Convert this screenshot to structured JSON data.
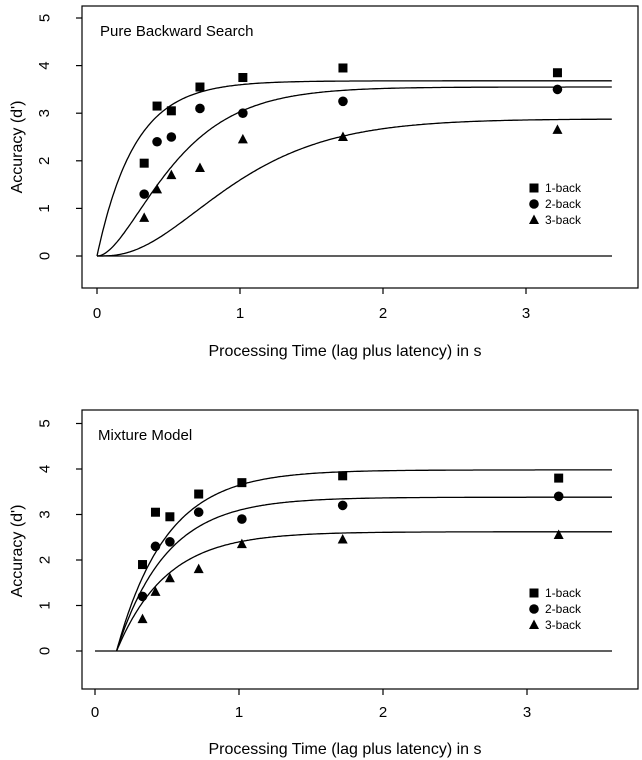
{
  "chart_data": [
    {
      "type": "scatter",
      "title": "Pure Backward Search",
      "xlabel": "Processing Time (lag plus latency) in s",
      "ylabel": "Accuracy (d')",
      "xlim": [
        -0.1,
        3.7
      ],
      "ylim": [
        -0.7,
        5.3
      ],
      "xticks": [
        "0",
        "1",
        "2",
        "3"
      ],
      "yticks": [
        "0",
        "1",
        "2",
        "3",
        "4",
        "5"
      ],
      "legend": "lower-right",
      "series": [
        {
          "name": "1-back",
          "marker": "square",
          "x": [
            0.33,
            0.42,
            0.52,
            0.72,
            1.02,
            1.72,
            3.22
          ],
          "y": [
            1.95,
            3.15,
            3.05,
            3.55,
            3.75,
            3.95,
            3.85
          ]
        },
        {
          "name": "2-back",
          "marker": "circle",
          "x": [
            0.33,
            0.42,
            0.52,
            0.72,
            1.02,
            1.72,
            3.22
          ],
          "y": [
            1.3,
            2.4,
            2.5,
            3.1,
            3.0,
            3.25,
            3.5
          ]
        },
        {
          "name": "3-back",
          "marker": "triangle",
          "x": [
            0.33,
            0.42,
            0.52,
            0.72,
            1.02,
            1.72,
            3.22
          ],
          "y": [
            0.8,
            1.4,
            1.7,
            1.85,
            2.45,
            2.5,
            2.65
          ]
        }
      ],
      "fits": [
        {
          "name": "1-back",
          "asymptote": 3.68,
          "rate": 3.8,
          "intercept": 0.0,
          "delay": 0
        },
        {
          "name": "2-back",
          "asymptote": 3.55,
          "rate": 3.4,
          "intercept": 0.0,
          "delay": 1
        },
        {
          "name": "3-back",
          "asymptote": 2.88,
          "rate": 2.9,
          "intercept": 0.0,
          "delay": 2
        }
      ]
    },
    {
      "type": "scatter",
      "title": "Mixture Model",
      "xlabel": "Processing Time (lag plus latency) in s",
      "ylabel": "Accuracy (d')",
      "xlim": [
        -0.1,
        3.7
      ],
      "ylim": [
        -0.7,
        5.3
      ],
      "xticks": [
        "0",
        "1",
        "2",
        "3"
      ],
      "yticks": [
        "0",
        "1",
        "2",
        "3",
        "4",
        "5"
      ],
      "legend": "lower-right",
      "series": [
        {
          "name": "1-back",
          "marker": "square",
          "x": [
            0.33,
            0.42,
            0.52,
            0.72,
            1.02,
            1.72,
            3.22
          ],
          "y": [
            1.9,
            3.05,
            2.95,
            3.45,
            3.7,
            3.85,
            3.8
          ]
        },
        {
          "name": "2-back",
          "marker": "circle",
          "x": [
            0.33,
            0.42,
            0.52,
            0.72,
            1.02,
            1.72,
            3.22
          ],
          "y": [
            1.2,
            2.3,
            2.4,
            3.05,
            2.9,
            3.2,
            3.4
          ]
        },
        {
          "name": "3-back",
          "marker": "triangle",
          "x": [
            0.33,
            0.42,
            0.52,
            0.72,
            1.02,
            1.72,
            3.22
          ],
          "y": [
            0.7,
            1.3,
            1.6,
            1.8,
            2.35,
            2.45,
            2.55
          ]
        }
      ],
      "fits": [
        {
          "name": "1-back",
          "asymptote": 3.98,
          "rate": 2.9,
          "intercept": 0.15,
          "delay": 0
        },
        {
          "name": "2-back",
          "asymptote": 3.38,
          "rate": 2.9,
          "intercept": 0.15,
          "delay": 0
        },
        {
          "name": "3-back",
          "asymptote": 2.62,
          "rate": 2.9,
          "intercept": 0.15,
          "delay": 0
        }
      ]
    }
  ]
}
